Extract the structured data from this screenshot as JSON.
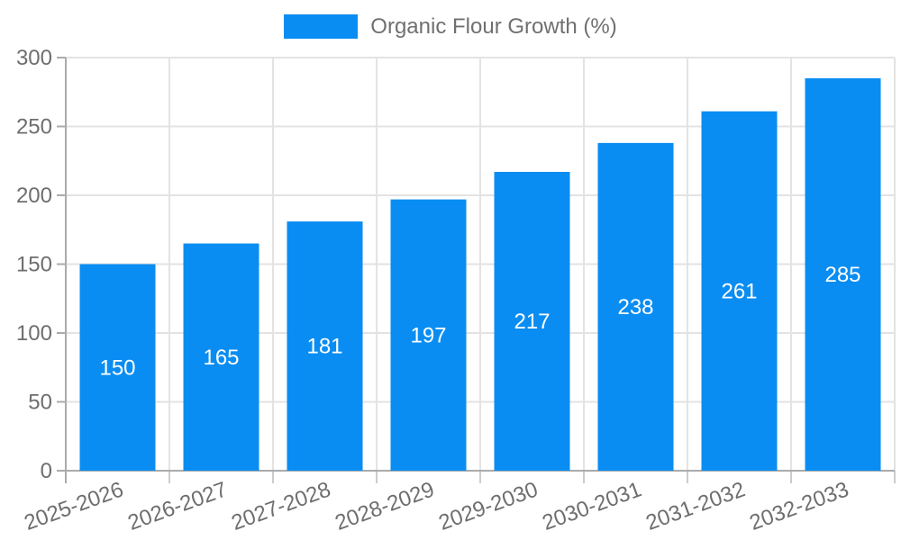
{
  "chart_data": {
    "type": "bar",
    "title": "",
    "legend": {
      "label": "Organic Flour Growth (%)",
      "position": "top-center"
    },
    "categories": [
      "2025-2026",
      "2026-2027",
      "2027-2028",
      "2028-2029",
      "2029-2030",
      "2030-2031",
      "2031-2032",
      "2032-2033"
    ],
    "values": [
      150,
      165,
      181,
      197,
      217,
      238,
      261,
      285
    ],
    "value_labels": [
      "150",
      "165",
      "181",
      "197",
      "217",
      "238",
      "261",
      "285"
    ],
    "ylim": [
      0,
      300
    ],
    "yticks": [
      0,
      50,
      100,
      150,
      200,
      250,
      300
    ],
    "xlabel": "",
    "ylabel": "",
    "grid": true,
    "x_label_rotation_deg": -20,
    "value_label_position": "inside-center",
    "colors": {
      "bar": "#0A8DF2",
      "grid_line": "#e3e3e3",
      "axis_line": "#ababab",
      "sub_tick": "#cccccc",
      "tick_text": "#6e6e6e",
      "legend_text": "#707070",
      "value_text": "#ffffff",
      "background": "#ffffff"
    }
  }
}
